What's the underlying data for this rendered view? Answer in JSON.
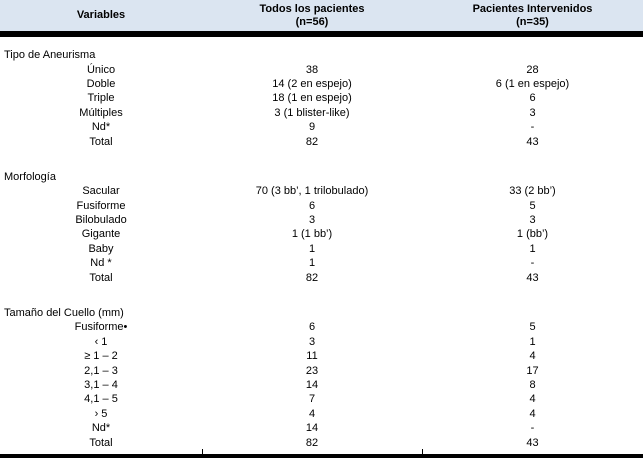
{
  "table": {
    "header": {
      "col1": "Variables",
      "col2_line1": "Todos los pacientes",
      "col2_line2": "(n=56)",
      "col3_line1": "Pacientes Intervenidos",
      "col3_line2": "(n=35)"
    },
    "sections": [
      {
        "title": "Tipo de Aneurisma",
        "rows": [
          [
            "Único",
            "38",
            "28"
          ],
          [
            "Doble",
            "14 (2 en espejo)",
            "6 (1 en espejo)"
          ],
          [
            "Triple",
            "18 (1 en espejo)",
            "6"
          ],
          [
            "Múltiples",
            "3 (1 blister-like)",
            "3"
          ],
          [
            "Nd*",
            "9",
            "-"
          ],
          [
            "Total",
            "82",
            "43"
          ]
        ]
      },
      {
        "title": "Morfología",
        "rows": [
          [
            "Sacular",
            "70 (3 bb’, 1 trilobulado)",
            "33 (2 bb’)"
          ],
          [
            "Fusiforme",
            "6",
            "5"
          ],
          [
            "Bilobulado",
            "3",
            "3"
          ],
          [
            "Gigante",
            "1 (1 bb’)",
            "1 (bb’)"
          ],
          [
            "Baby",
            "1",
            "1"
          ],
          [
            "Nd *",
            "1",
            "-"
          ],
          [
            "Total",
            "82",
            "43"
          ]
        ]
      },
      {
        "title": "Tamaño del Cuello (mm)",
        "rows": [
          [
            "Fusiforme•",
            "6",
            "5"
          ],
          [
            "‹ 1",
            "3",
            "1"
          ],
          [
            "≥ 1 – 2",
            "11",
            "4"
          ],
          [
            "2,1 – 3",
            "23",
            "17"
          ],
          [
            "3,1 – 4",
            "14",
            "8"
          ],
          [
            "4,1 – 5",
            "7",
            "4"
          ],
          [
            "› 5",
            "4",
            "4"
          ],
          [
            "Nd*",
            "14",
            "-"
          ],
          [
            "Total",
            "82",
            "43"
          ]
        ]
      }
    ],
    "colors": {
      "header_bg": "#dbe5f1",
      "border": "#000000",
      "text": "#000000"
    }
  }
}
